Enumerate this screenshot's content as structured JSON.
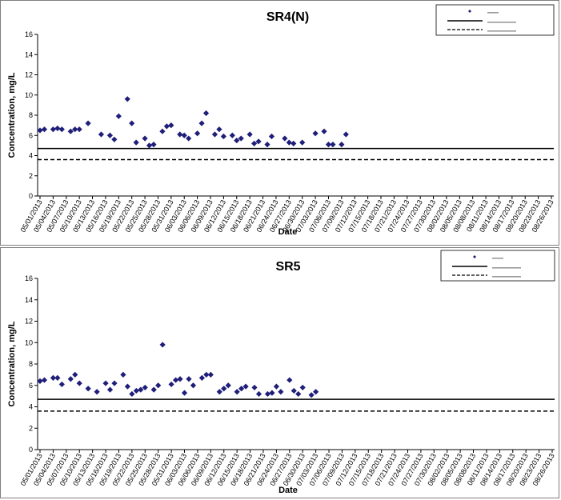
{
  "chart_data": [
    {
      "type": "scatter",
      "title": "SR4(N)",
      "xlabel": "Date",
      "ylabel": "Concentration, mg/L",
      "ylim": [
        0,
        16
      ],
      "yticks": [
        "0",
        "2",
        "4",
        "6",
        "8",
        "10",
        "12",
        "14",
        "16"
      ],
      "grid": false,
      "legend_position": "top-right",
      "x_tick_labels": [
        "05/01/2013",
        "05/04/2013",
        "05/07/2013",
        "05/10/2013",
        "05/13/2013",
        "05/16/2013",
        "05/19/2013",
        "05/22/2013",
        "05/25/2013",
        "05/28/2013",
        "05/31/2013",
        "06/03/2013",
        "06/06/2013",
        "06/09/2013",
        "06/12/2013",
        "06/15/2013",
        "06/18/2013",
        "06/21/2013",
        "06/24/2013",
        "06/27/2013",
        "06/30/2013",
        "07/03/2013",
        "07/06/2013",
        "07/09/2013",
        "07/12/2013",
        "07/15/2013",
        "07/18/2013",
        "07/21/2013",
        "07/24/2013",
        "07/27/2013",
        "07/30/2013",
        "08/02/2013",
        "08/05/2013",
        "08/08/2013",
        "08/11/2013",
        "08/14/2013",
        "08/17/2013",
        "08/20/2013",
        "08/23/2013",
        "08/26/2013"
      ],
      "series": [
        {
          "marker": "diamond",
          "color": "#1f1f7a",
          "points": [
            [
              "05/01/2013",
              6.5
            ],
            [
              "05/02/2013",
              6.6
            ],
            [
              "05/04/2013",
              6.6
            ],
            [
              "05/05/2013",
              6.7
            ],
            [
              "05/06/2013",
              6.6
            ],
            [
              "05/08/2013",
              6.4
            ],
            [
              "05/09/2013",
              6.6
            ],
            [
              "05/10/2013",
              6.6
            ],
            [
              "05/12/2013",
              7.2
            ],
            [
              "05/15/2013",
              6.1
            ],
            [
              "05/17/2013",
              6.0
            ],
            [
              "05/18/2013",
              5.6
            ],
            [
              "05/19/2013",
              7.9
            ],
            [
              "05/21/2013",
              9.6
            ],
            [
              "05/22/2013",
              7.2
            ],
            [
              "05/23/2013",
              5.3
            ],
            [
              "05/25/2013",
              5.7
            ],
            [
              "05/26/2013",
              5.0
            ],
            [
              "05/27/2013",
              5.1
            ],
            [
              "05/29/2013",
              6.4
            ],
            [
              "05/30/2013",
              6.9
            ],
            [
              "05/31/2013",
              7.0
            ],
            [
              "06/02/2013",
              6.1
            ],
            [
              "06/03/2013",
              6.0
            ],
            [
              "06/04/2013",
              5.7
            ],
            [
              "06/06/2013",
              6.2
            ],
            [
              "06/07/2013",
              7.2
            ],
            [
              "06/08/2013",
              8.2
            ],
            [
              "06/10/2013",
              6.1
            ],
            [
              "06/11/2013",
              6.6
            ],
            [
              "06/12/2013",
              5.9
            ],
            [
              "06/14/2013",
              6.0
            ],
            [
              "06/15/2013",
              5.5
            ],
            [
              "06/16/2013",
              5.7
            ],
            [
              "06/18/2013",
              6.1
            ],
            [
              "06/19/2013",
              5.2
            ],
            [
              "06/20/2013",
              5.4
            ],
            [
              "06/22/2013",
              5.1
            ],
            [
              "06/23/2013",
              5.9
            ],
            [
              "06/26/2013",
              5.7
            ],
            [
              "06/27/2013",
              5.3
            ],
            [
              "06/28/2013",
              5.2
            ],
            [
              "06/30/2013",
              5.3
            ],
            [
              "07/03/2013",
              6.2
            ],
            [
              "07/05/2013",
              6.4
            ],
            [
              "07/06/2013",
              5.1
            ],
            [
              "07/07/2013",
              5.1
            ],
            [
              "07/09/2013",
              5.1
            ],
            [
              "07/10/2013",
              6.1
            ]
          ]
        }
      ]
    },
    {
      "type": "scatter",
      "title": "SR5",
      "xlabel": "Date",
      "ylabel": "Concentration, mg/L",
      "ylim": [
        0,
        16
      ],
      "yticks": [
        "0",
        "2",
        "4",
        "6",
        "8",
        "10",
        "12",
        "14",
        "16"
      ],
      "grid": false,
      "legend_position": "top-right",
      "x_tick_labels": [
        "05/01/2013",
        "05/04/2013",
        "05/07/2013",
        "05/10/2013",
        "05/13/2013",
        "05/16/2013",
        "05/19/2013",
        "05/22/2013",
        "05/25/2013",
        "05/28/2013",
        "05/31/2013",
        "06/03/2013",
        "06/06/2013",
        "06/09/2013",
        "06/12/2013",
        "06/15/2013",
        "06/18/2013",
        "06/21/2013",
        "06/24/2013",
        "06/27/2013",
        "06/30/2013",
        "07/03/2013",
        "07/06/2013",
        "07/09/2013",
        "07/12/2013",
        "07/15/2013",
        "07/18/2013",
        "07/21/2013",
        "07/24/2013",
        "07/27/2013",
        "07/30/2013",
        "08/02/2013",
        "08/05/2013",
        "08/08/2013",
        "08/11/2013",
        "08/14/2013",
        "08/17/2013",
        "08/20/2013",
        "08/23/2013",
        "08/26/2013"
      ],
      "series": [
        {
          "marker": "diamond",
          "color": "#1f1f7a",
          "points": [
            [
              "05/01/2013",
              6.4
            ],
            [
              "05/02/2013",
              6.5
            ],
            [
              "05/04/2013",
              6.7
            ],
            [
              "05/05/2013",
              6.7
            ],
            [
              "05/06/2013",
              6.1
            ],
            [
              "05/08/2013",
              6.6
            ],
            [
              "05/09/2013",
              7.0
            ],
            [
              "05/10/2013",
              6.2
            ],
            [
              "05/12/2013",
              5.7
            ],
            [
              "05/14/2013",
              5.4
            ],
            [
              "05/16/2013",
              6.2
            ],
            [
              "05/17/2013",
              5.6
            ],
            [
              "05/18/2013",
              6.2
            ],
            [
              "05/20/2013",
              7.0
            ],
            [
              "05/21/2013",
              5.9
            ],
            [
              "05/22/2013",
              5.2
            ],
            [
              "05/23/2013",
              5.5
            ],
            [
              "05/24/2013",
              5.6
            ],
            [
              "05/25/2013",
              5.8
            ],
            [
              "05/27/2013",
              5.6
            ],
            [
              "05/28/2013",
              6.0
            ],
            [
              "05/29/2013",
              9.8
            ],
            [
              "05/31/2013",
              6.1
            ],
            [
              "06/01/2013",
              6.5
            ],
            [
              "06/02/2013",
              6.6
            ],
            [
              "06/03/2013",
              5.3
            ],
            [
              "06/04/2013",
              6.6
            ],
            [
              "06/05/2013",
              6.0
            ],
            [
              "06/07/2013",
              6.7
            ],
            [
              "06/08/2013",
              7.0
            ],
            [
              "06/09/2013",
              7.0
            ],
            [
              "06/11/2013",
              5.4
            ],
            [
              "06/12/2013",
              5.7
            ],
            [
              "06/13/2013",
              6.0
            ],
            [
              "06/15/2013",
              5.4
            ],
            [
              "06/16/2013",
              5.7
            ],
            [
              "06/17/2013",
              5.9
            ],
            [
              "06/19/2013",
              5.8
            ],
            [
              "06/20/2013",
              5.2
            ],
            [
              "06/22/2013",
              5.2
            ],
            [
              "06/23/2013",
              5.3
            ],
            [
              "06/24/2013",
              5.9
            ],
            [
              "06/25/2013",
              5.4
            ],
            [
              "06/27/2013",
              6.5
            ],
            [
              "06/28/2013",
              5.5
            ],
            [
              "06/29/2013",
              5.2
            ],
            [
              "06/30/2013",
              5.8
            ],
            [
              "07/02/2013",
              5.1
            ],
            [
              "07/03/2013",
              5.4
            ]
          ]
        }
      ],
      "reference_lines_comment": null
    }
  ],
  "reference_lines": [
    {
      "style": "solid",
      "color": "#000000",
      "values": [
        4.7,
        4.7
      ]
    },
    {
      "style": "dashed",
      "color": "#000000",
      "values": [
        3.6,
        3.6
      ]
    }
  ]
}
